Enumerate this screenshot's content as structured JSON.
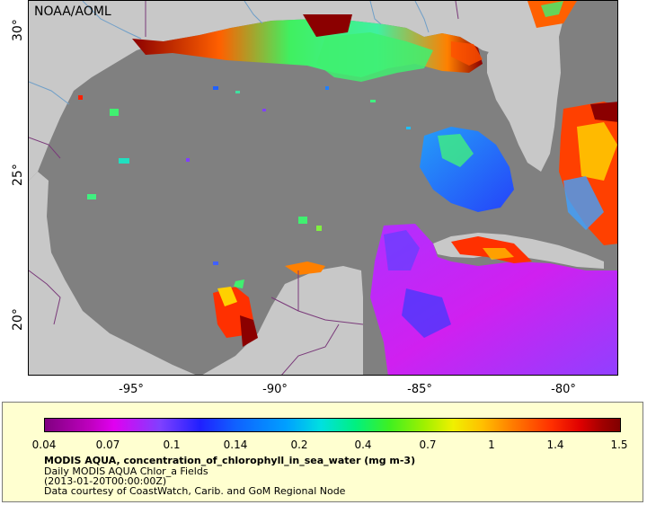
{
  "map": {
    "credit": "NOAA/AOML",
    "lat_labels": [
      "30°",
      "25°",
      "20°"
    ],
    "lon_labels": [
      "-95°",
      "-90°",
      "-85°",
      "-80°"
    ],
    "colors": {
      "ocean_nodata": "#808080",
      "land": "#c8c8c8",
      "border": "#7a3a7a",
      "river": "#6f9fc8"
    }
  },
  "legend": {
    "ticks": [
      "0.04",
      "0.07",
      "0.1",
      "0.14",
      "0.2",
      "0.4",
      "0.7",
      "1",
      "1.4",
      "1.5"
    ],
    "variable": "MODIS AQUA, concentration_of_chlorophyll_in_sea_water (mg m-3)",
    "dataset": "Daily MODIS AQUA Chlor_a Fields",
    "time": "(2013-01-20T00:00:00Z)",
    "courtesy": "Data courtesy of CoastWatch, Carib. and GoM Regional Node"
  }
}
